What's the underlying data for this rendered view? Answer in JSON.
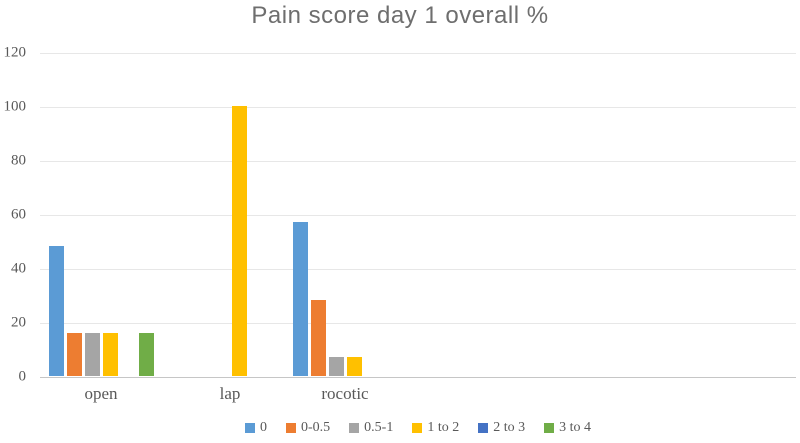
{
  "chart_data": {
    "type": "bar",
    "title": "Pain score day 1 overall %",
    "categories": [
      "open",
      "lap",
      "rocotic"
    ],
    "series": [
      {
        "name": "0",
        "color": "#5B9BD5",
        "values": [
          48,
          0,
          57
        ]
      },
      {
        "name": "0-0.5",
        "color": "#ED7D31",
        "values": [
          16,
          0,
          28
        ]
      },
      {
        "name": "0.5-1",
        "color": "#A5A5A5",
        "values": [
          16,
          0,
          7
        ]
      },
      {
        "name": "1 to 2",
        "color": "#FFC000",
        "values": [
          16,
          100,
          7
        ]
      },
      {
        "name": "2 to 3",
        "color": "#4472C4",
        "values": [
          0,
          0,
          0
        ]
      },
      {
        "name": "3 to 4",
        "color": "#70AD47",
        "values": [
          16,
          0,
          0
        ]
      }
    ],
    "xlabel": "",
    "ylabel": "",
    "ylim": [
      0,
      120
    ],
    "y_ticks": [
      0,
      20,
      40,
      60,
      80,
      100,
      120
    ],
    "grid": true,
    "legend_position": "bottom",
    "title_color": "#6e6e6e",
    "axis_text_color": "#595959"
  }
}
